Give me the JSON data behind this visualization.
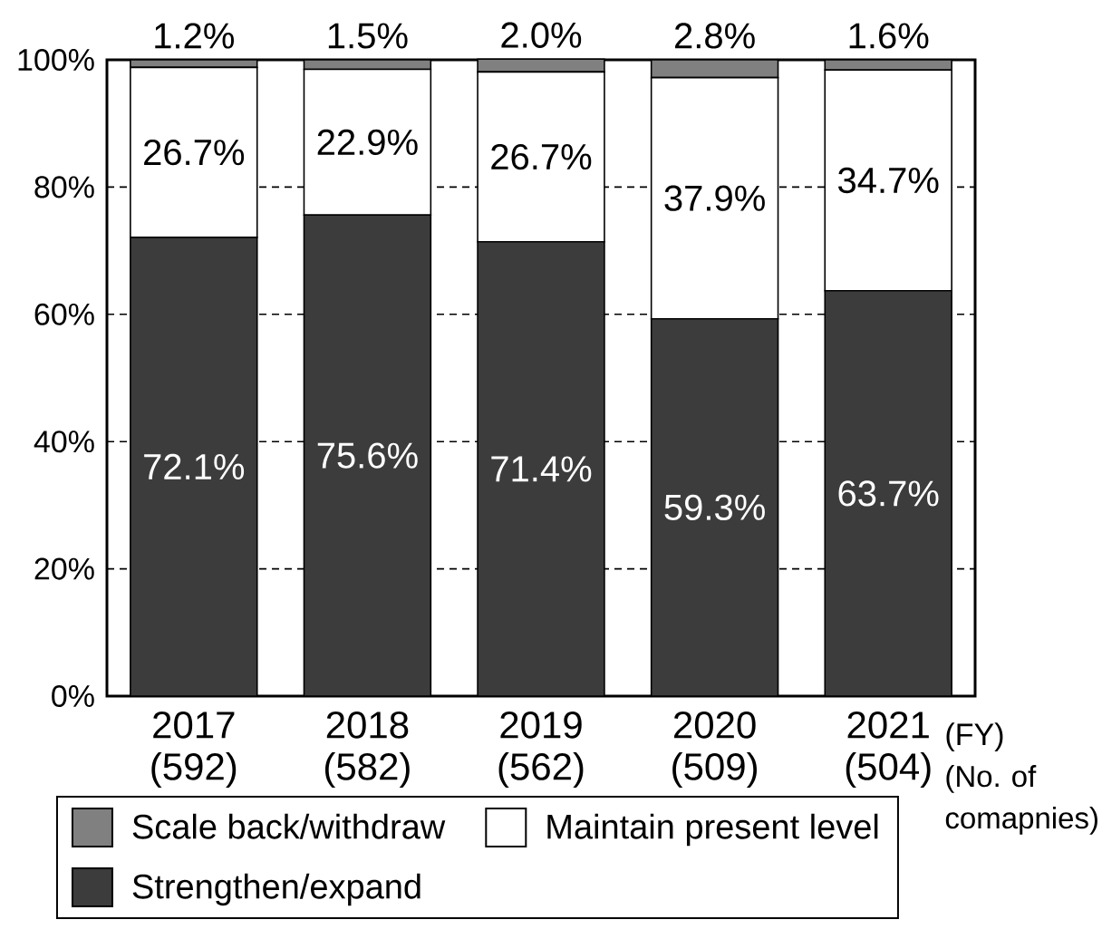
{
  "chart_data": {
    "type": "bar",
    "stacked": true,
    "categories": [
      "2017 (592)",
      "2018 (582)",
      "2019 (562)",
      "2020 (509)",
      "2021 (504)"
    ],
    "series": [
      {
        "name": "Strengthen/expand",
        "color": "#3c3c3c",
        "values": [
          72.1,
          75.6,
          71.4,
          59.3,
          63.7
        ],
        "value_labels": [
          "72.1%",
          "75.6%",
          "71.4%",
          "59.3%",
          "63.7%"
        ]
      },
      {
        "name": "Maintain present level",
        "color": "#ffffff",
        "values": [
          26.7,
          22.9,
          26.7,
          37.9,
          34.7
        ],
        "value_labels": [
          "26.7%",
          "22.9%",
          "26.7%",
          "37.9%",
          "34.7%"
        ]
      },
      {
        "name": "Scale back/withdraw",
        "color": "#808080",
        "values": [
          1.2,
          1.5,
          2.0,
          2.8,
          1.6
        ],
        "value_labels": [
          "1.2%",
          "1.5%",
          "2.0%",
          "2.8%",
          "1.6%"
        ]
      }
    ],
    "ylim": [
      0,
      100
    ],
    "yticks": [
      {
        "value": 0,
        "label": "0%"
      },
      {
        "value": 20,
        "label": "20%"
      },
      {
        "value": 40,
        "label": "40%"
      },
      {
        "value": 60,
        "label": "60%"
      },
      {
        "value": 80,
        "label": "80%"
      },
      {
        "value": 100,
        "label": "100%"
      }
    ],
    "grid": "y",
    "legend": "bottom",
    "annotations": [
      "(FY)",
      "(No. of comapnies)"
    ]
  }
}
